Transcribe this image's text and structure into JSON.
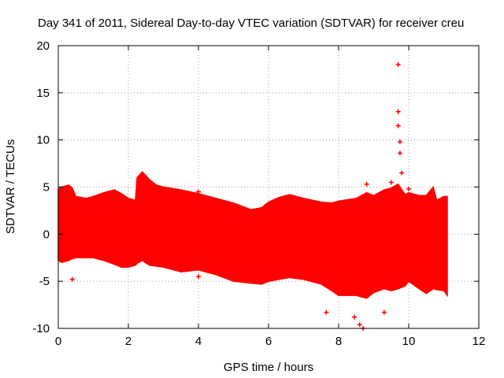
{
  "chart_data": {
    "type": "area",
    "title": "Day 341 of 2011, Sidereal Day-to-day VTEC variation (SDTVAR) for receiver creu",
    "xlabel": "GPS time / hours",
    "ylabel": "SDTVAR / TECUs",
    "xlim": [
      0,
      12
    ],
    "ylim": [
      -10,
      20
    ],
    "xticks": [
      "0",
      "2",
      "4",
      "6",
      "8",
      "10",
      "12"
    ],
    "yticks": [
      "-10",
      "-5",
      "0",
      "5",
      "10",
      "15",
      "20"
    ],
    "grid": true,
    "series": [
      {
        "name": "SDTVAR",
        "color": "#ff0000",
        "x": [
          0.0,
          0.1,
          0.3,
          0.4,
          0.5,
          0.8,
          1.0,
          1.3,
          1.6,
          1.8,
          2.0,
          2.2,
          2.25,
          2.4,
          2.6,
          2.8,
          3.0,
          3.5,
          4.0,
          4.5,
          5.0,
          5.5,
          5.8,
          6.0,
          6.3,
          6.6,
          7.0,
          7.5,
          7.8,
          8.0,
          8.5,
          8.8,
          9.0,
          9.3,
          9.5,
          9.7,
          9.9,
          10.0,
          10.3,
          10.5,
          10.7,
          10.8,
          11.0,
          11.1
        ],
        "upper": [
          4.8,
          5.0,
          5.2,
          4.9,
          4.0,
          3.8,
          4.0,
          4.4,
          4.7,
          4.3,
          3.8,
          3.6,
          6.0,
          6.6,
          5.8,
          5.2,
          5.0,
          4.7,
          4.3,
          3.8,
          3.3,
          2.6,
          2.8,
          3.4,
          3.9,
          4.2,
          3.8,
          3.4,
          3.3,
          3.5,
          3.8,
          4.4,
          4.1,
          4.7,
          4.9,
          5.3,
          4.2,
          4.4,
          4.1,
          4.1,
          5.0,
          3.6,
          4.0,
          4.0
        ],
        "lower": [
          -2.8,
          -3.0,
          -2.8,
          -2.6,
          -2.5,
          -2.5,
          -2.5,
          -2.8,
          -3.2,
          -3.5,
          -3.5,
          -3.3,
          -3.1,
          -2.8,
          -3.3,
          -3.4,
          -3.5,
          -4.0,
          -3.8,
          -4.3,
          -5.0,
          -5.2,
          -5.3,
          -5.0,
          -4.8,
          -4.6,
          -4.8,
          -5.3,
          -6.0,
          -6.5,
          -6.5,
          -6.8,
          -6.2,
          -5.8,
          -6.0,
          -5.8,
          -5.5,
          -5.0,
          -5.8,
          -6.3,
          -5.8,
          -5.9,
          -6.0,
          -6.5
        ],
        "outliers": [
          {
            "x": 0.4,
            "y": -4.8
          },
          {
            "x": 4.0,
            "y": -4.5
          },
          {
            "x": 4.0,
            "y": 4.5
          },
          {
            "x": 7.65,
            "y": -8.3
          },
          {
            "x": 8.45,
            "y": -8.8
          },
          {
            "x": 8.6,
            "y": -9.6
          },
          {
            "x": 8.7,
            "y": -10.0
          },
          {
            "x": 8.8,
            "y": 5.3
          },
          {
            "x": 9.3,
            "y": -8.3
          },
          {
            "x": 9.5,
            "y": 5.5
          },
          {
            "x": 9.7,
            "y": 18.0
          },
          {
            "x": 9.7,
            "y": 13.0
          },
          {
            "x": 9.7,
            "y": 11.5
          },
          {
            "x": 9.75,
            "y": 9.8
          },
          {
            "x": 9.75,
            "y": 8.6
          },
          {
            "x": 9.8,
            "y": 6.5
          },
          {
            "x": 10.0,
            "y": 4.8
          }
        ]
      }
    ]
  }
}
